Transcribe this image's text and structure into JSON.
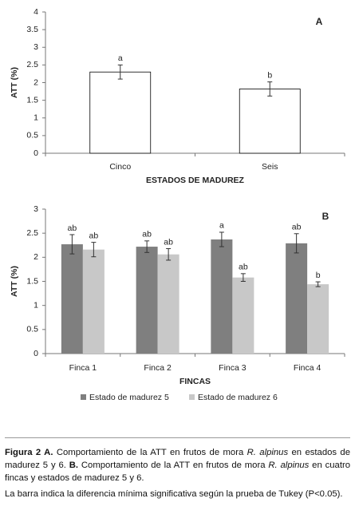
{
  "chart_data": [
    {
      "type": "bar",
      "panel": "A",
      "ylabel": "ATT (%)",
      "xlabel": "ESTADOS DE MADUREZ",
      "categories": [
        "Cinco",
        "Seis"
      ],
      "values": [
        2.3,
        1.82
      ],
      "errors": [
        0.2,
        0.2
      ],
      "labels": [
        "a",
        "b"
      ],
      "color": "#ffffff",
      "edge": "#000000",
      "ylim": [
        0,
        4
      ],
      "yticks": [
        0,
        0.5,
        1,
        1.5,
        2,
        2.5,
        3,
        3.5,
        4
      ]
    },
    {
      "type": "bar",
      "panel": "B",
      "ylabel": "ATT (%)",
      "xlabel": "FINCAS",
      "categories": [
        "Finca 1",
        "Finca 2",
        "Finca 3",
        "Finca 4"
      ],
      "series": [
        {
          "name": "Estado de madurez 5",
          "color": "#7f7f7f",
          "values": [
            2.27,
            2.22,
            2.37,
            2.29
          ],
          "errors": [
            0.2,
            0.12,
            0.15,
            0.2
          ],
          "labels": [
            "ab",
            "ab",
            "a",
            "ab"
          ]
        },
        {
          "name": "Estado de madurez 6",
          "color": "#c8c8c8",
          "values": [
            2.16,
            2.06,
            1.58,
            1.44
          ],
          "errors": [
            0.15,
            0.12,
            0.08,
            0.05
          ],
          "labels": [
            "ab",
            "ab",
            "ab",
            "b"
          ]
        }
      ],
      "ylim": [
        0,
        3
      ],
      "yticks": [
        0,
        0.5,
        1,
        1.5,
        2,
        2.5,
        3
      ],
      "legend": "bottom"
    }
  ],
  "caption": {
    "paragraphs": [
      [
        {
          "text": "Figura 2 A.",
          "style": "bold"
        },
        {
          "text": " Comportamiento de la ATT en frutos de mora ",
          "style": "normal"
        },
        {
          "text": "R. alpinus",
          "style": "italic"
        },
        {
          "text": " en estados de madurez 5 y 6. ",
          "style": "normal"
        },
        {
          "text": "B.",
          "style": "bold"
        },
        {
          "text": " Comportamiento de la ATT en frutos de mora ",
          "style": "normal"
        },
        {
          "text": "R. alpinus",
          "style": "italic"
        },
        {
          "text": " en cuatro fincas y estados de madurez 5 y 6.",
          "style": "normal"
        }
      ],
      [
        {
          "text": "La barra indica la diferencia mínima significativa según la prueba de Tukey (P<0.05).",
          "style": "normal"
        }
      ]
    ]
  }
}
